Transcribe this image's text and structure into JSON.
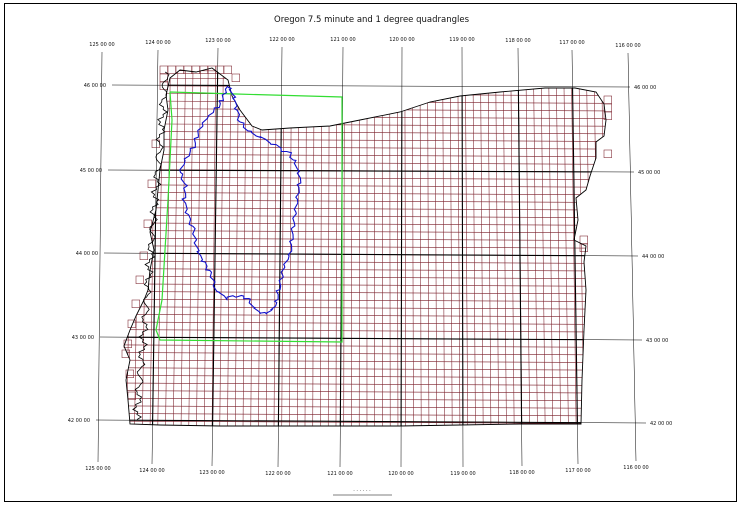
{
  "map": {
    "title": "Oregon 7.5 minute and 1 degree quadrangles",
    "colors": {
      "quad_grid": "#7a1f2a",
      "degree_grid": "#000000",
      "graticule": "#000000",
      "coastline": "#000000",
      "green_box": "#33dd33",
      "blue_boundary": "#1111cc",
      "background": "#ffffff"
    },
    "top_longitude_labels": [
      "125 00 00",
      "124 00 00",
      "123 00 00",
      "122 00 00",
      "121 00 00",
      "120 00 00",
      "119 00 00",
      "118 00 00",
      "117 00 00",
      "116 00 00"
    ],
    "bottom_longitude_labels": [
      "125 00 00",
      "124 00 00",
      "123 00 00",
      "122 00 00",
      "121 00 00",
      "120 00 00",
      "119 00 00",
      "118 00 00",
      "117 00 00",
      "116 00 00"
    ],
    "left_latitude_labels": [
      "46 00 00",
      "45 00 00",
      "44 00 00",
      "43 00 00",
      "42 00 00"
    ],
    "right_latitude_labels": [
      "46 00 00",
      "45 00 00",
      "44 00 00",
      "43 00 00",
      "42 00 00"
    ],
    "scale_bar_label": "· · · · · ·"
  }
}
